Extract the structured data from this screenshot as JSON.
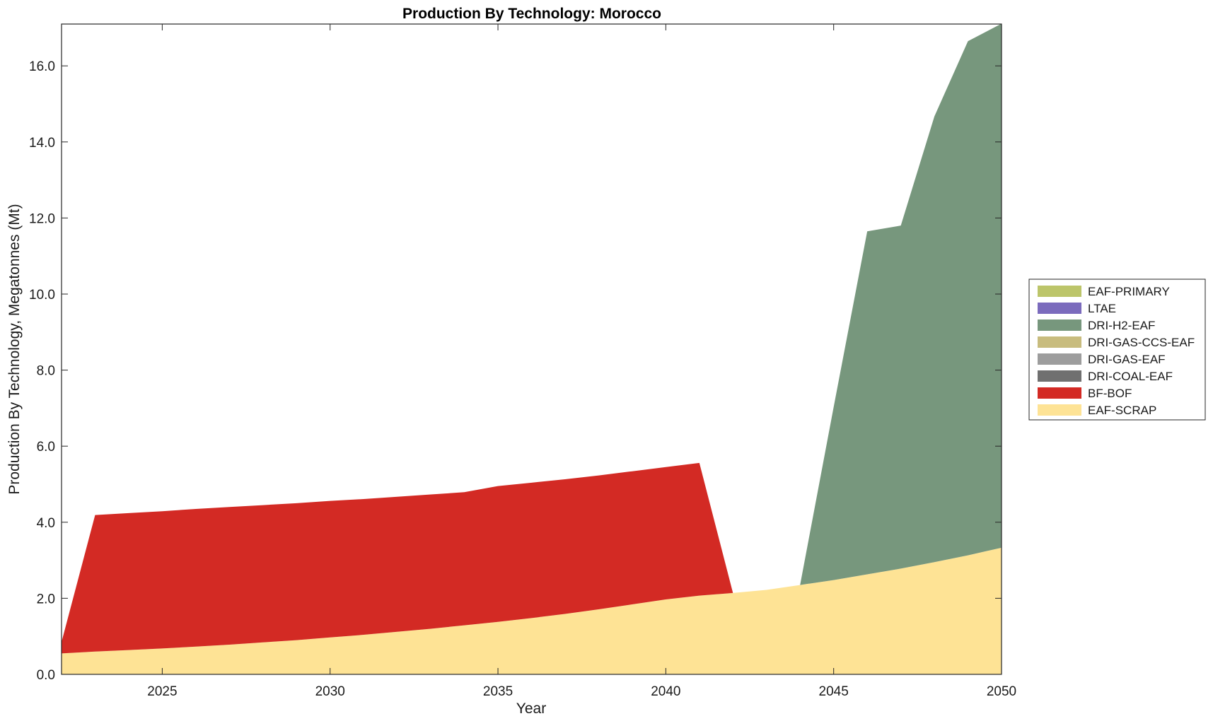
{
  "chart_data": {
    "type": "area",
    "stacked": true,
    "title": "Production By Technology: Morocco",
    "xlabel": "Year",
    "ylabel": "Production By Technology, Megatonnes (Mt)",
    "xlim": [
      2022,
      2050
    ],
    "ylim": [
      0,
      17.1
    ],
    "x_ticks": [
      2025,
      2030,
      2035,
      2040,
      2045,
      2050
    ],
    "x_tick_labels": [
      "2025",
      "2030",
      "2035",
      "2040",
      "2045",
      "2050"
    ],
    "y_ticks": [
      0,
      2,
      4,
      6,
      8,
      10,
      12,
      14,
      16
    ],
    "y_tick_labels": [
      "0.0",
      "2.0",
      "4.0",
      "6.0",
      "8.0",
      "10.0",
      "12.0",
      "14.0",
      "16.0"
    ],
    "grid": false,
    "legend_position": "right",
    "x": [
      2022,
      2023,
      2024,
      2025,
      2026,
      2027,
      2028,
      2029,
      2030,
      2031,
      2032,
      2033,
      2034,
      2035,
      2036,
      2037,
      2038,
      2039,
      2040,
      2041,
      2042,
      2043,
      2044,
      2045,
      2046,
      2047,
      2048,
      2049,
      2050
    ],
    "series": [
      {
        "name": "EAF-SCRAP",
        "color": "#fee395",
        "values": [
          0.55,
          0.6,
          0.64,
          0.68,
          0.73,
          0.78,
          0.84,
          0.9,
          0.97,
          1.04,
          1.12,
          1.2,
          1.29,
          1.38,
          1.48,
          1.59,
          1.71,
          1.84,
          1.97,
          2.07,
          2.14,
          2.22,
          2.35,
          2.48,
          2.63,
          2.78,
          2.95,
          3.13,
          3.33
        ]
      },
      {
        "name": "BF-BOF",
        "color": "#d32a24",
        "values": [
          0.3,
          3.59,
          3.6,
          3.61,
          3.62,
          3.62,
          3.61,
          3.6,
          3.59,
          3.57,
          3.55,
          3.53,
          3.5,
          3.57,
          3.56,
          3.54,
          3.52,
          3.5,
          3.48,
          3.49,
          0,
          0,
          0,
          0,
          0,
          0,
          0,
          0,
          0
        ]
      },
      {
        "name": "DRI-COAL-EAF",
        "color": "#707070",
        "values": [
          0,
          0,
          0,
          0,
          0,
          0,
          0,
          0,
          0,
          0,
          0,
          0,
          0,
          0,
          0,
          0,
          0,
          0,
          0,
          0,
          0,
          0,
          0,
          0,
          0,
          0,
          0,
          0,
          0
        ]
      },
      {
        "name": "DRI-GAS-EAF",
        "color": "#9d9d9d",
        "values": [
          0,
          0,
          0,
          0,
          0,
          0,
          0,
          0,
          0,
          0,
          0,
          0,
          0,
          0,
          0,
          0,
          0,
          0,
          0,
          0,
          0,
          0,
          0,
          0,
          0,
          0,
          0,
          0,
          0
        ]
      },
      {
        "name": "DRI-GAS-CCS-EAF",
        "color": "#c8bc7e",
        "values": [
          0,
          0,
          0,
          0,
          0,
          0,
          0,
          0,
          0,
          0,
          0,
          0,
          0,
          0,
          0,
          0,
          0,
          0,
          0,
          0,
          0,
          0,
          0,
          0,
          0,
          0,
          0,
          0,
          0
        ]
      },
      {
        "name": "DRI-H2-EAF",
        "color": "#77977d",
        "values": [
          0,
          0,
          0,
          0,
          0,
          0,
          0,
          0,
          0,
          0,
          0,
          0,
          0,
          0,
          0,
          0,
          0,
          0,
          0,
          0,
          0,
          0,
          0,
          4.55,
          9.02,
          9.02,
          11.72,
          13.52,
          13.78
        ]
      },
      {
        "name": "LTAE",
        "color": "#7b6bbd",
        "values": [
          0,
          0,
          0,
          0,
          0,
          0,
          0,
          0,
          0,
          0,
          0,
          0,
          0,
          0,
          0,
          0,
          0,
          0,
          0,
          0,
          0,
          0,
          0,
          0,
          0,
          0,
          0,
          0,
          0
        ]
      },
      {
        "name": "EAF-PRIMARY",
        "color": "#bcc56a",
        "values": [
          0,
          0,
          0,
          0,
          0,
          0,
          0,
          0,
          0,
          0,
          0,
          0,
          0,
          0,
          0,
          0,
          0,
          0,
          0,
          0,
          0,
          0,
          0,
          0,
          0,
          0,
          0,
          0,
          0
        ]
      }
    ],
    "legend_order": [
      "EAF-PRIMARY",
      "LTAE",
      "DRI-H2-EAF",
      "DRI-GAS-CCS-EAF",
      "DRI-GAS-EAF",
      "DRI-COAL-EAF",
      "BF-BOF",
      "EAF-SCRAP"
    ]
  }
}
